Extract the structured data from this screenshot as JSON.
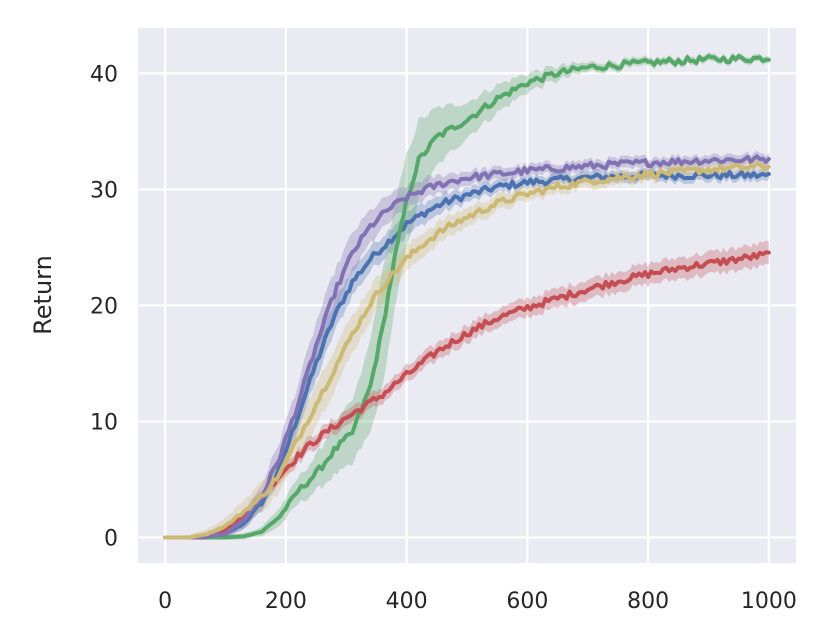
{
  "chart_data": {
    "type": "line",
    "title": "",
    "xlabel": "",
    "ylabel": "Return",
    "xlim": [
      -45,
      1045
    ],
    "ylim": [
      -2.2,
      43.9
    ],
    "xticks": [
      0,
      200,
      400,
      600,
      800,
      1000
    ],
    "yticks": [
      0,
      10,
      20,
      30,
      40
    ],
    "xtick_labels": [
      "0",
      "200",
      "400",
      "600",
      "800",
      "1000"
    ],
    "ytick_labels": [
      "0",
      "10",
      "20",
      "30",
      "40"
    ],
    "grid": true,
    "legend": false,
    "series": [
      {
        "color": "#4c72b0",
        "points": [
          [
            0,
            0
          ],
          [
            50,
            0
          ],
          [
            100,
            0.3
          ],
          [
            130,
            1.2
          ],
          [
            160,
            3
          ],
          [
            190,
            6
          ],
          [
            220,
            10.5
          ],
          [
            250,
            15
          ],
          [
            280,
            19
          ],
          [
            310,
            22
          ],
          [
            340,
            24
          ],
          [
            370,
            25.5
          ],
          [
            400,
            27
          ],
          [
            430,
            28
          ],
          [
            460,
            28.8
          ],
          [
            500,
            29.5
          ],
          [
            550,
            30.2
          ],
          [
            600,
            30.6
          ],
          [
            700,
            31
          ],
          [
            800,
            31.2
          ],
          [
            900,
            31.2
          ],
          [
            1000,
            31.2
          ]
        ],
        "band": [
          [
            0,
            0
          ],
          [
            100,
            0.3
          ],
          [
            200,
            1.0
          ],
          [
            250,
            1.5
          ],
          [
            300,
            1.2
          ],
          [
            350,
            1.0
          ],
          [
            400,
            1.0
          ],
          [
            500,
            0.6
          ],
          [
            600,
            0.5
          ],
          [
            1000,
            0.5
          ]
        ]
      },
      {
        "color": "#55a868",
        "points": [
          [
            0,
            0
          ],
          [
            100,
            0
          ],
          [
            130,
            0.1
          ],
          [
            160,
            0.5
          ],
          [
            190,
            1.8
          ],
          [
            220,
            4
          ],
          [
            250,
            5.5
          ],
          [
            280,
            7.5
          ],
          [
            310,
            9
          ],
          [
            340,
            13
          ],
          [
            360,
            18
          ],
          [
            380,
            24
          ],
          [
            400,
            29
          ],
          [
            420,
            32.5
          ],
          [
            450,
            34.5
          ],
          [
            500,
            36
          ],
          [
            550,
            37.8
          ],
          [
            600,
            39.2
          ],
          [
            650,
            40
          ],
          [
            700,
            40.5
          ],
          [
            800,
            40.9
          ],
          [
            900,
            41.2
          ],
          [
            1000,
            41.3
          ]
        ],
        "band": [
          [
            0,
            0
          ],
          [
            150,
            0.3
          ],
          [
            250,
            1.5
          ],
          [
            320,
            3
          ],
          [
            360,
            5
          ],
          [
            400,
            4
          ],
          [
            450,
            2.5
          ],
          [
            500,
            1.5
          ],
          [
            550,
            1.2
          ],
          [
            600,
            0.8
          ],
          [
            700,
            0.4
          ],
          [
            1000,
            0.3
          ]
        ]
      },
      {
        "color": "#c44e52",
        "points": [
          [
            0,
            0
          ],
          [
            60,
            0
          ],
          [
            90,
            0.3
          ],
          [
            120,
            1.5
          ],
          [
            150,
            3
          ],
          [
            180,
            4.8
          ],
          [
            210,
            6.5
          ],
          [
            240,
            8
          ],
          [
            270,
            9.2
          ],
          [
            300,
            10.3
          ],
          [
            330,
            11.3
          ],
          [
            360,
            12.3
          ],
          [
            390,
            13.6
          ],
          [
            420,
            14.8
          ],
          [
            450,
            16
          ],
          [
            500,
            17.6
          ],
          [
            550,
            18.9
          ],
          [
            600,
            19.8
          ],
          [
            650,
            20.6
          ],
          [
            700,
            21.4
          ],
          [
            750,
            22.1
          ],
          [
            800,
            22.7
          ],
          [
            850,
            23.2
          ],
          [
            900,
            23.6
          ],
          [
            950,
            24
          ],
          [
            1000,
            24.4
          ]
        ],
        "band": [
          [
            0,
            0
          ],
          [
            100,
            0.3
          ],
          [
            200,
            0.6
          ],
          [
            400,
            0.7
          ],
          [
            600,
            0.8
          ],
          [
            800,
            0.9
          ],
          [
            1000,
            1.0
          ]
        ]
      },
      {
        "color": "#8172b3",
        "points": [
          [
            0,
            0
          ],
          [
            60,
            0
          ],
          [
            100,
            0.3
          ],
          [
            130,
            1.5
          ],
          [
            160,
            3.5
          ],
          [
            190,
            7
          ],
          [
            220,
            11.5
          ],
          [
            250,
            16.5
          ],
          [
            280,
            21
          ],
          [
            310,
            24.5
          ],
          [
            340,
            26.8
          ],
          [
            370,
            28.3
          ],
          [
            400,
            29.3
          ],
          [
            430,
            30
          ],
          [
            460,
            30.5
          ],
          [
            500,
            31
          ],
          [
            550,
            31.3
          ],
          [
            600,
            31.6
          ],
          [
            700,
            32
          ],
          [
            800,
            32.3
          ],
          [
            900,
            32.5
          ],
          [
            1000,
            32.6
          ]
        ],
        "band": [
          [
            0,
            0
          ],
          [
            100,
            0.4
          ],
          [
            200,
            1.5
          ],
          [
            250,
            2
          ],
          [
            300,
            1.8
          ],
          [
            350,
            1.3
          ],
          [
            400,
            1.0
          ],
          [
            500,
            0.6
          ],
          [
            600,
            0.5
          ],
          [
            1000,
            0.5
          ]
        ]
      },
      {
        "color": "#ccb974",
        "points": [
          [
            0,
            0
          ],
          [
            40,
            0
          ],
          [
            70,
            0.3
          ],
          [
            100,
            1.0
          ],
          [
            130,
            2.2
          ],
          [
            160,
            3.5
          ],
          [
            190,
            5.5
          ],
          [
            220,
            8.5
          ],
          [
            250,
            11.5
          ],
          [
            280,
            14.5
          ],
          [
            310,
            17.5
          ],
          [
            340,
            20.2
          ],
          [
            370,
            22.3
          ],
          [
            400,
            24
          ],
          [
            430,
            25.4
          ],
          [
            460,
            26.5
          ],
          [
            500,
            27.6
          ],
          [
            550,
            28.8
          ],
          [
            600,
            29.6
          ],
          [
            650,
            30.2
          ],
          [
            700,
            30.7
          ],
          [
            800,
            31.3
          ],
          [
            900,
            31.7
          ],
          [
            1000,
            32
          ]
        ],
        "band": [
          [
            0,
            0
          ],
          [
            80,
            0.5
          ],
          [
            150,
            1.2
          ],
          [
            220,
            1.8
          ],
          [
            280,
            1.8
          ],
          [
            350,
            1.4
          ],
          [
            400,
            1.1
          ],
          [
            500,
            0.8
          ],
          [
            600,
            0.6
          ],
          [
            1000,
            0.5
          ]
        ]
      }
    ]
  }
}
